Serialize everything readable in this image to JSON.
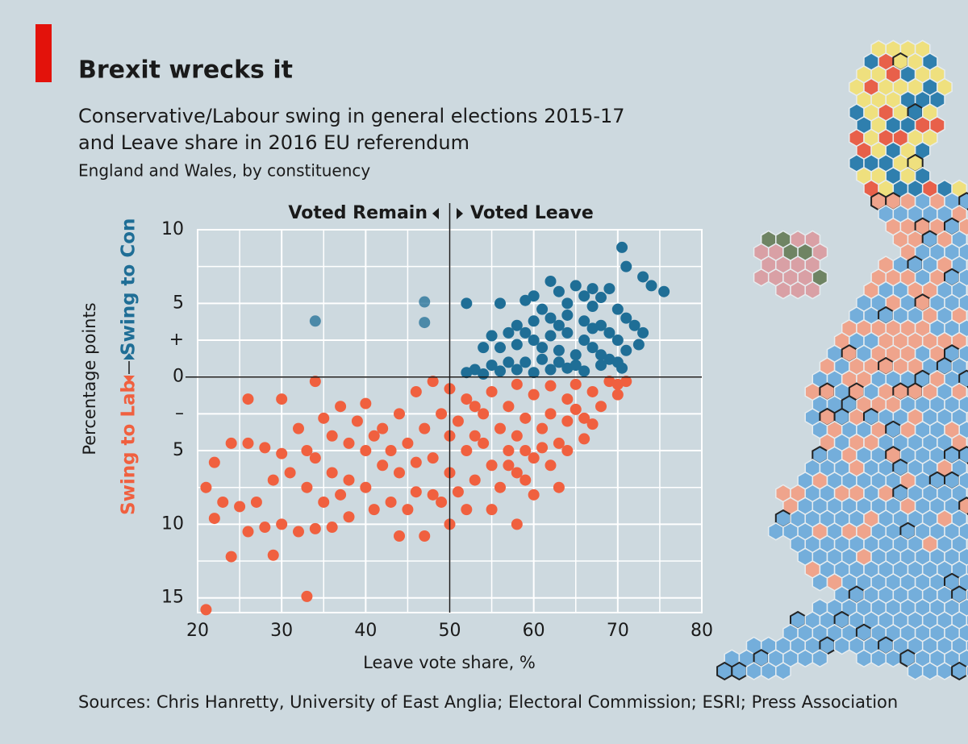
{
  "chart_data": {
    "type": "scatter",
    "title": "Brexit wrecks it",
    "subtitle": [
      "Conservative/Labour swing in general elections 2015-17",
      "and Leave share in 2016 EU referendum"
    ],
    "note": "England and Wales, by constituency",
    "xlabel": "Leave vote share, %",
    "ylabel": "Percentage points",
    "annotations": {
      "left": "Voted Remain",
      "right": "Voted Leave"
    },
    "source": "Sources: Chris Hanretty, University of East Anglia; Electoral Commission; ESRI; Press Association",
    "xlim": [
      20,
      80
    ],
    "ylim": [
      -16,
      10
    ],
    "xticks": [
      20,
      30,
      40,
      50,
      60,
      70,
      80
    ],
    "minor_xticks": [
      25,
      35,
      45,
      55,
      65,
      75
    ],
    "yticks": [
      10,
      5,
      {
        "value": 2.5,
        "label": "+"
      },
      0,
      {
        "value": -2.5,
        "label": "–"
      },
      {
        "value": -5,
        "label": "5"
      },
      {
        "value": -10,
        "label": "10"
      },
      {
        "value": -15,
        "label": "15"
      }
    ],
    "minor_yticks": [
      7.5,
      -7.5,
      -12.5
    ],
    "grid": true,
    "reference_lines": {
      "x": 50,
      "y": 0
    },
    "series": [
      {
        "name": "Swing to Con",
        "color": "#1f6e96",
        "x": [
          34,
          47,
          47,
          52,
          70.5,
          71,
          73,
          74,
          75.5,
          69,
          67,
          65,
          66,
          68,
          62,
          63,
          60,
          59,
          56,
          64,
          67,
          70,
          71,
          72,
          73,
          72.5,
          70,
          71,
          69,
          70.5,
          68,
          66,
          64,
          62,
          60,
          58,
          57,
          55,
          54,
          56,
          58,
          60,
          62,
          64,
          66,
          67,
          68,
          65,
          63,
          61,
          59,
          57,
          55,
          53,
          52,
          54,
          56,
          58,
          60,
          62,
          64,
          66,
          68,
          61,
          63,
          65,
          67,
          69,
          70,
          59,
          61,
          63
        ],
        "values": [
          3.8,
          5.1,
          3.7,
          5.0,
          8.8,
          7.5,
          6.8,
          6.2,
          5.8,
          6.0,
          6.0,
          6.2,
          5.5,
          5.4,
          6.5,
          5.8,
          5.5,
          5.2,
          5.0,
          5.0,
          4.8,
          4.6,
          4.0,
          3.5,
          3.0,
          2.2,
          2.5,
          1.8,
          1.2,
          0.6,
          3.5,
          3.8,
          4.2,
          4.0,
          3.8,
          3.5,
          3.0,
          2.8,
          2.0,
          2.0,
          2.2,
          2.5,
          2.8,
          3.0,
          2.5,
          2.0,
          1.5,
          1.5,
          1.8,
          1.2,
          1.0,
          1.0,
          0.8,
          0.5,
          0.3,
          0.2,
          0.4,
          0.5,
          0.3,
          0.5,
          0.6,
          0.4,
          0.8,
          2.0,
          1.0,
          0.8,
          3.3,
          3.0,
          1.0,
          3.0,
          4.6,
          3.5
        ]
      },
      {
        "name": "Swing to Lab",
        "color": "#f0603f",
        "x": [
          21,
          33,
          24,
          29,
          26,
          22,
          23,
          21,
          22,
          24,
          26,
          26,
          30,
          34,
          37,
          35,
          32,
          28,
          30,
          33,
          29,
          27,
          25,
          28,
          30,
          32,
          34,
          36,
          38,
          35,
          33,
          31,
          36,
          38,
          40,
          41,
          43,
          45,
          44,
          47,
          46,
          48,
          50,
          52,
          55,
          58,
          42,
          40,
          38,
          42,
          44,
          40,
          46,
          48,
          50,
          45,
          47,
          48,
          44,
          46,
          49,
          50,
          50,
          51,
          52,
          52,
          53,
          54,
          54,
          55,
          55,
          56,
          56,
          57,
          57,
          58,
          58,
          58,
          59,
          60,
          60,
          61,
          62,
          62,
          63,
          64,
          64,
          65,
          65,
          66,
          67,
          68,
          69,
          70,
          70,
          71,
          62,
          64,
          63,
          60,
          59,
          53,
          51,
          49,
          43,
          41,
          39,
          36,
          34,
          37,
          66,
          67,
          61,
          57,
          53,
          59
        ],
        "values": [
          -15.8,
          -14.9,
          -12.2,
          -12.1,
          -10.5,
          -9.6,
          -8.5,
          -7.5,
          -5.8,
          -4.5,
          -4.5,
          -1.5,
          -1.5,
          -0.3,
          -2,
          -2.8,
          -3.5,
          -4.8,
          -5.2,
          -5,
          -7,
          -8.5,
          -8.8,
          -10.2,
          -10,
          -10.5,
          -10.3,
          -10.2,
          -9.5,
          -8.5,
          -7.5,
          -6.5,
          -6.5,
          -7,
          -7.5,
          -9,
          -8.5,
          -9,
          -10.8,
          -10.8,
          -7.8,
          -8,
          -10,
          -9,
          -9,
          -10,
          -6,
          -5,
          -4.5,
          -3.5,
          -2.5,
          -1.8,
          -1,
          -0.3,
          -0.8,
          -4.5,
          -3.5,
          -5.5,
          -6.5,
          -5.8,
          -2.5,
          -4,
          -6.5,
          -3,
          -1.5,
          -5,
          -7,
          -2.5,
          -4.5,
          -6,
          -1,
          -3.5,
          -7.5,
          -2,
          -5,
          -0.5,
          -4,
          -6.5,
          -2.8,
          -1.2,
          -5.5,
          -3.5,
          -0.6,
          -2.5,
          -4.5,
          -1.5,
          -3,
          -0.5,
          -2.2,
          -4.2,
          -1,
          -2,
          -0.3,
          -1.2,
          -0.5,
          -0.3,
          -6,
          -5,
          -7.5,
          -8,
          -7,
          -4,
          -7.8,
          -8.5,
          -5,
          -4,
          -3,
          -4,
          -5.5,
          -8,
          -2.8,
          -3.2,
          -4.8,
          -6,
          -2,
          -5
        ]
      }
    ]
  }
}
